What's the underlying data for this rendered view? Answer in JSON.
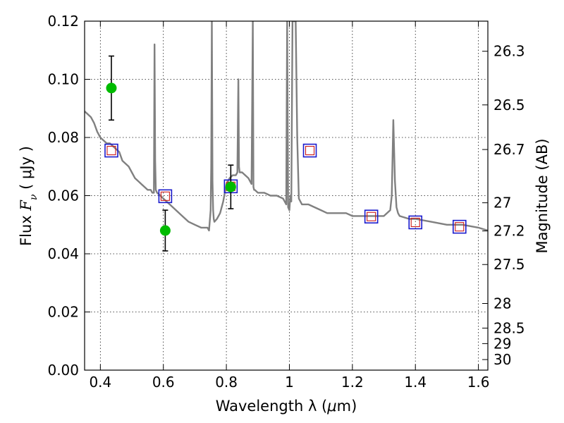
{
  "chart_data": {
    "type": "scatter",
    "xlabel": {
      "prefix": "Wavelength  λ (",
      "unit_italic": "μ",
      "suffix": "m)"
    },
    "ylabel": {
      "prefix": "Flux  ",
      "var_italic": "F",
      "var_sub": "ν",
      "unit": "  ( μJy )"
    },
    "y2label": "Magnitude (AB)",
    "xlim": [
      0.35,
      1.63
    ],
    "ylim": [
      0.0,
      0.12
    ],
    "grid": true,
    "x_ticks": [
      {
        "value": 0.4,
        "label": "0.4"
      },
      {
        "value": 0.6,
        "label": "0.6"
      },
      {
        "value": 0.8,
        "label": "0.8"
      },
      {
        "value": 1.0,
        "label": "1"
      },
      {
        "value": 1.2,
        "label": "1.2"
      },
      {
        "value": 1.4,
        "label": "1.4"
      },
      {
        "value": 1.6,
        "label": "1.6"
      }
    ],
    "y_ticks": [
      {
        "value": 0.0,
        "label": "0.00"
      },
      {
        "value": 0.02,
        "label": "0.02"
      },
      {
        "value": 0.04,
        "label": "0.04"
      },
      {
        "value": 0.06,
        "label": "0.06"
      },
      {
        "value": 0.08,
        "label": "0.08"
      },
      {
        "value": 0.1,
        "label": "0.10"
      },
      {
        "value": 0.12,
        "label": "0.12"
      }
    ],
    "y2_ticks": [
      {
        "value": 26.3,
        "label": "26.3"
      },
      {
        "value": 26.5,
        "label": "26.5"
      },
      {
        "value": 26.7,
        "label": "26.7"
      },
      {
        "value": 27.0,
        "label": "27"
      },
      {
        "value": 27.2,
        "label": "27.2"
      },
      {
        "value": 27.5,
        "label": "27.5"
      },
      {
        "value": 28.0,
        "label": "28"
      },
      {
        "value": 28.5,
        "label": "28.5"
      },
      {
        "value": 29.0,
        "label": "29"
      },
      {
        "value": 30.0,
        "label": "30"
      }
    ],
    "colors": {
      "model": "#808080",
      "observed": "#00bb00",
      "model_photometry": "#1a1acc",
      "model_photometry_inner": "#cc1a1a",
      "errorbar": "#000000"
    },
    "model_spectrum": {
      "x": [
        0.35,
        0.36,
        0.37,
        0.38,
        0.39,
        0.4,
        0.41,
        0.42,
        0.43,
        0.44,
        0.45,
        0.46,
        0.47,
        0.48,
        0.49,
        0.5,
        0.51,
        0.52,
        0.53,
        0.54,
        0.55,
        0.56,
        0.565,
        0.57,
        0.572,
        0.574,
        0.576,
        0.58,
        0.59,
        0.6,
        0.62,
        0.64,
        0.66,
        0.68,
        0.7,
        0.72,
        0.74,
        0.745,
        0.75,
        0.752,
        0.754,
        0.756,
        0.758,
        0.76,
        0.762,
        0.77,
        0.78,
        0.79,
        0.8,
        0.81,
        0.82,
        0.83,
        0.835,
        0.838,
        0.84,
        0.842,
        0.845,
        0.85,
        0.86,
        0.87,
        0.88,
        0.884,
        0.886,
        0.888,
        0.89,
        0.9,
        0.92,
        0.94,
        0.96,
        0.98,
        0.985,
        0.99,
        0.993,
        0.996,
        1.0,
        1.003,
        1.006,
        1.01,
        1.015,
        1.02,
        1.025,
        1.03,
        1.035,
        1.04,
        1.06,
        1.08,
        1.1,
        1.12,
        1.15,
        1.18,
        1.2,
        1.22,
        1.25,
        1.28,
        1.3,
        1.32,
        1.325,
        1.33,
        1.335,
        1.34,
        1.345,
        1.35,
        1.38,
        1.4,
        1.45,
        1.5,
        1.55,
        1.6,
        1.63
      ],
      "y": [
        0.089,
        0.088,
        0.087,
        0.085,
        0.082,
        0.08,
        0.079,
        0.078,
        0.078,
        0.077,
        0.076,
        0.075,
        0.072,
        0.071,
        0.07,
        0.068,
        0.066,
        0.065,
        0.064,
        0.063,
        0.062,
        0.062,
        0.061,
        0.061,
        0.112,
        0.072,
        0.062,
        0.061,
        0.06,
        0.059,
        0.057,
        0.055,
        0.053,
        0.051,
        0.05,
        0.049,
        0.049,
        0.048,
        0.055,
        0.07,
        0.12,
        0.065,
        0.055,
        0.052,
        0.051,
        0.052,
        0.054,
        0.058,
        0.064,
        0.066,
        0.067,
        0.067,
        0.068,
        0.1,
        0.07,
        0.068,
        0.068,
        0.068,
        0.067,
        0.066,
        0.064,
        0.12,
        0.063,
        0.062,
        0.062,
        0.061,
        0.061,
        0.06,
        0.06,
        0.059,
        0.058,
        0.057,
        0.12,
        0.056,
        0.055,
        0.06,
        0.058,
        0.12,
        0.12,
        0.12,
        0.08,
        0.059,
        0.058,
        0.057,
        0.057,
        0.056,
        0.055,
        0.054,
        0.054,
        0.054,
        0.053,
        0.053,
        0.053,
        0.053,
        0.053,
        0.055,
        0.06,
        0.086,
        0.065,
        0.056,
        0.054,
        0.053,
        0.052,
        0.052,
        0.051,
        0.05,
        0.05,
        0.049,
        0.048
      ]
    },
    "observed": [
      {
        "x": 0.435,
        "y": 0.097,
        "err": 0.011
      },
      {
        "x": 0.606,
        "y": 0.048,
        "err": 0.007
      },
      {
        "x": 0.814,
        "y": 0.063,
        "err": 0.0075
      }
    ],
    "model_photometry": [
      {
        "x": 0.435,
        "y": 0.0755
      },
      {
        "x": 0.606,
        "y": 0.0598
      },
      {
        "x": 0.814,
        "y": 0.0632
      },
      {
        "x": 1.065,
        "y": 0.0755
      },
      {
        "x": 1.26,
        "y": 0.0528
      },
      {
        "x": 1.4,
        "y": 0.0508
      },
      {
        "x": 1.54,
        "y": 0.0493
      }
    ]
  }
}
